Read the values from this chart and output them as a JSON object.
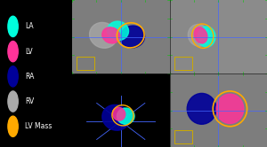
{
  "legend_items": [
    {
      "label": "LA",
      "color": "#00FFDD"
    },
    {
      "label": "LV",
      "color": "#FF3399"
    },
    {
      "label": "RA",
      "color": "#000099"
    },
    {
      "label": "RV",
      "color": "#AAAAAA"
    },
    {
      "label": "LV Mass",
      "color": "#FFAA00"
    }
  ],
  "bg_color": "#000000",
  "legend_area": [
    0.0,
    0.0,
    0.27,
    1.0
  ],
  "crosshair_color": "#4466FF",
  "yellow_box_color": "#CCAA00",
  "green_tick_color": "#00CC00",
  "chambers": {
    "LA": {
      "color": "#00FFDD",
      "alpha": 0.85
    },
    "LV": {
      "color": "#FF3399",
      "alpha": 0.85
    },
    "RA": {
      "color": "#000099",
      "alpha": 0.9
    },
    "RV": {
      "color": "#AAAAAA",
      "alpha": 0.75
    },
    "LV_mass_outline": {
      "color": "#FFAA00",
      "alpha": 0.9
    }
  }
}
